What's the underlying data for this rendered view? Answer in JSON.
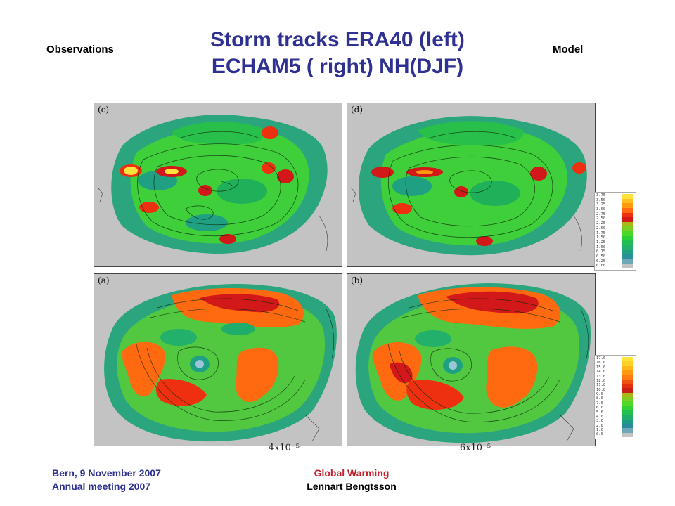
{
  "slide": {
    "title_line1": "Storm tracks ERA40 (left)",
    "title_line2": "ECHAM5 ( right) NH(DJF)",
    "left_label": "Observations",
    "right_label": "Model"
  },
  "panels": {
    "c": "(c)",
    "d": "(d)",
    "a": "(a)",
    "b": "(b)"
  },
  "colorbars": {
    "top": [
      "3.75",
      "3.50",
      "3.25",
      "3.00",
      "2.75",
      "2.50",
      "2.25",
      "2.00",
      "1.75",
      "1.50",
      "1.25",
      "1.00",
      "0.75",
      "0.50",
      "0.25",
      "0.00"
    ],
    "bottom": [
      "17.0",
      "16.0",
      "15.0",
      "14.0",
      "13.0",
      "12.0",
      "11.0",
      "10.0",
      "9.0",
      "8.0",
      "7.0",
      "6.0",
      "5.0",
      "4.0",
      "3.0",
      "2.0",
      "1.0",
      "0.0"
    ],
    "colors_top": [
      "#ffe23a",
      "#ffc020",
      "#ff9a10",
      "#ff6a10",
      "#ee3010",
      "#d21818",
      "#a8b818",
      "#7ad020",
      "#4ad828",
      "#28d038",
      "#20c050",
      "#22b06a",
      "#1fa082",
      "#2a8f98",
      "#6fa6b8",
      "#c3c3c3"
    ],
    "colors_bottom": [
      "#ffe23a",
      "#ffd028",
      "#ffb818",
      "#ff9a10",
      "#ff7a10",
      "#f05010",
      "#e03010",
      "#c82018",
      "#a8b818",
      "#80cc20",
      "#52d828",
      "#30d036",
      "#22c04e",
      "#20ac6a",
      "#1f9a86",
      "#2a8a9c",
      "#6fa6b8",
      "#c3c3c3"
    ]
  },
  "legend": {
    "left": "– – – – – –   4x10⁻⁵",
    "right": "- - - - - - - - - - - - - - -   6x10⁻⁵"
  },
  "footer": {
    "left_line1": "Bern, 9 November 2007",
    "left_line2": "Annual meeting 2007",
    "center_line1": "Global Warming",
    "center_line2": "Lennart Bengtsson"
  }
}
